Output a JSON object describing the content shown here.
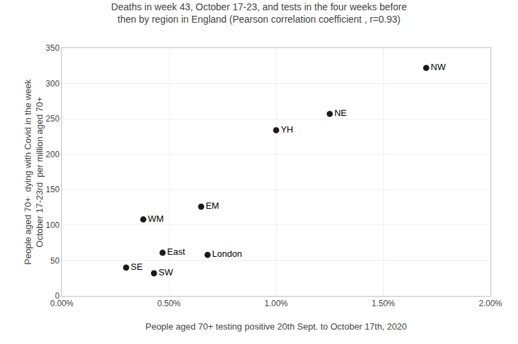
{
  "chart_data": {
    "type": "scatter",
    "title": "Deaths in week 43, October 17-23, and tests in the four weeks before\nthen by region in England (Pearson correlation coefficient , r=0.93)",
    "xlabel": "People aged 70+ testing positive 20th Sept. to October 17th, 2020",
    "ylabel": "People aged 70+  dying with Covid in the week\nOctober 17-23rd  per million aged 70+",
    "labels": [
      "NW",
      "NE",
      "YH",
      "EM",
      "WM",
      "East",
      "London",
      "SE",
      "SW"
    ],
    "x": [
      0.017,
      0.0125,
      0.01,
      0.0065,
      0.0038,
      0.0047,
      0.0068,
      0.003,
      0.0043
    ],
    "values": [
      322,
      257,
      234,
      126,
      108,
      61,
      58,
      40,
      32
    ],
    "color": "#1a1a1a",
    "xlim": [
      0.0,
      0.02
    ],
    "ylim": [
      0,
      350
    ],
    "xticks": [
      {
        "value": 0.0,
        "label": "0.00%"
      },
      {
        "value": 0.005,
        "label": "0.50%"
      },
      {
        "value": 0.01,
        "label": "1.00%"
      },
      {
        "value": 0.015,
        "label": "1.50%"
      },
      {
        "value": 0.02,
        "label": "2.00%"
      }
    ],
    "yticks": [
      0,
      50,
      100,
      150,
      200,
      250,
      300,
      350
    ],
    "grid": true
  }
}
